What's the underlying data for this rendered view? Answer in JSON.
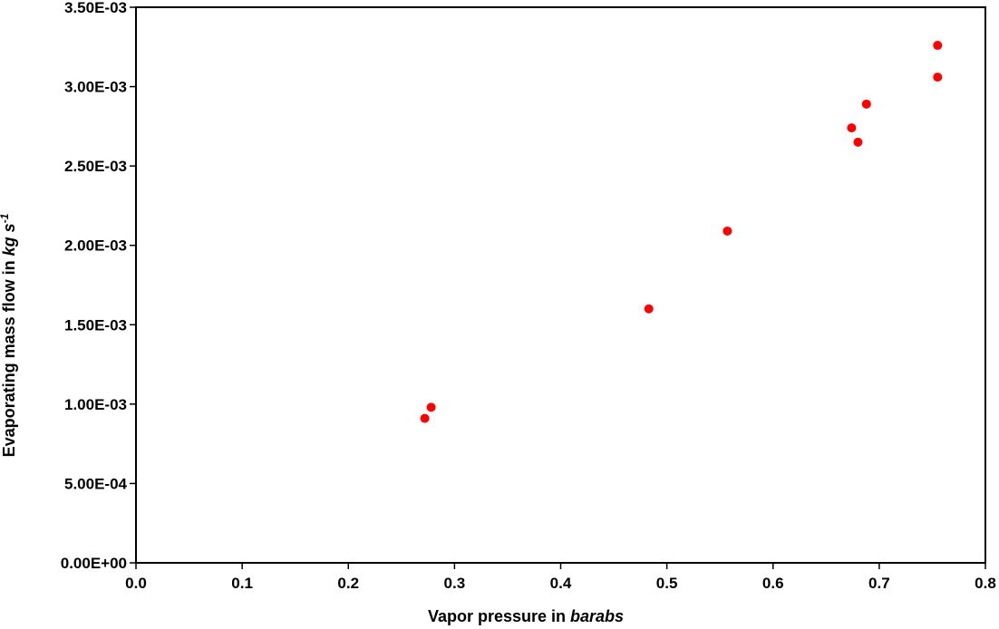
{
  "chart_data": {
    "type": "scatter",
    "title": "",
    "xlabel": "Vapor pressure in ",
    "xlabel_unit": "barabs",
    "ylabel": "Evaporating mass flow in ",
    "ylabel_unit": "kg s",
    "ylabel_unit_sup": "-1",
    "xlim": [
      0,
      0.8
    ],
    "ylim": [
      0,
      0.0035
    ],
    "x_ticks": [
      "0.0",
      "0.1",
      "0.2",
      "0.3",
      "0.4",
      "0.5",
      "0.6",
      "0.7",
      "0.8"
    ],
    "y_ticks": [
      "0.00E+00",
      "5.00E-04",
      "1.00E-03",
      "1.50E-03",
      "2.00E-03",
      "2.50E-03",
      "3.00E-03",
      "3.50E-03"
    ],
    "grid": false,
    "legend": "none",
    "marker_color": "#ff0000",
    "series": [
      {
        "points": [
          {
            "x": 0.272,
            "y": 0.00091
          },
          {
            "x": 0.278,
            "y": 0.00098
          },
          {
            "x": 0.483,
            "y": 0.0016
          },
          {
            "x": 0.557,
            "y": 0.00209
          },
          {
            "x": 0.674,
            "y": 0.00274
          },
          {
            "x": 0.68,
            "y": 0.00265
          },
          {
            "x": 0.688,
            "y": 0.00289
          },
          {
            "x": 0.755,
            "y": 0.00306
          },
          {
            "x": 0.755,
            "y": 0.00326
          }
        ]
      }
    ]
  }
}
